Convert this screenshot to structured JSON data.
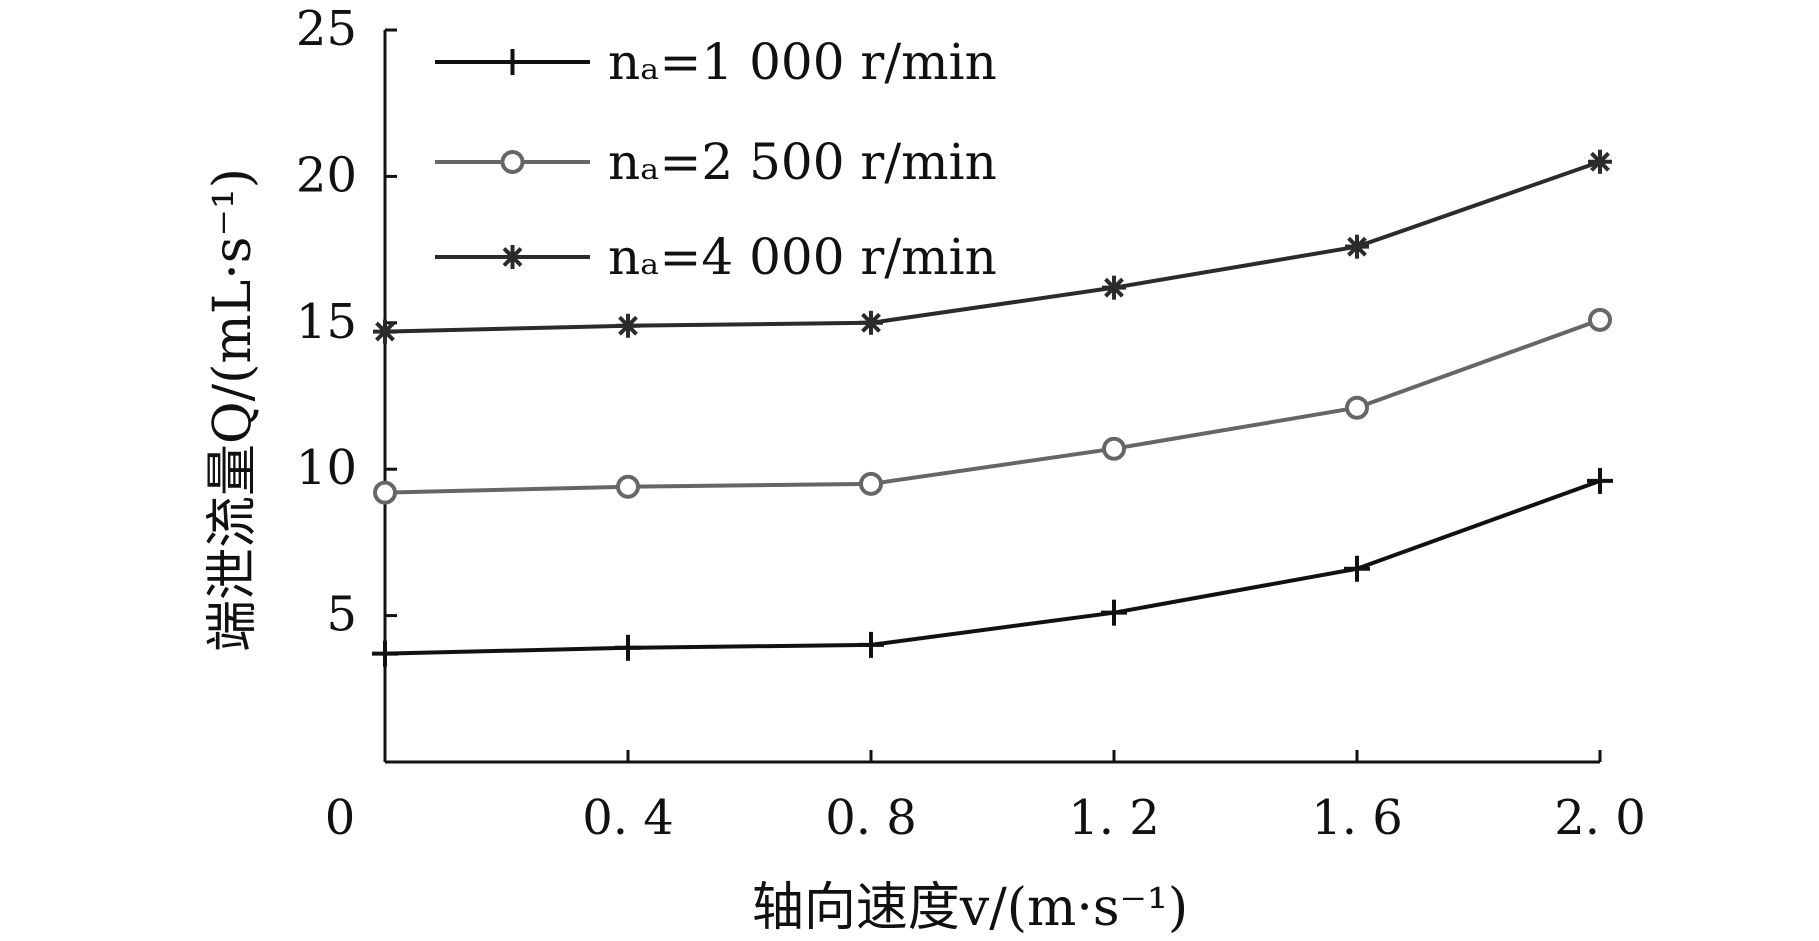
{
  "chart_data": {
    "type": "line",
    "title": "",
    "xlabel": "轴向速度v/(m·s⁻¹)",
    "ylabel": "端泄流量Q/(mL·s⁻¹)",
    "x": [
      0,
      0.4,
      0.8,
      1.2,
      1.6,
      2.0
    ],
    "x_tick_labels": [
      "0",
      "0. 4",
      "0. 8",
      "1. 2",
      "1. 6",
      "2. 0"
    ],
    "y_tick_labels": [
      "5",
      "10",
      "15",
      "20",
      "25"
    ],
    "y_ticks": [
      5,
      10,
      15,
      20,
      25
    ],
    "xlim": [
      0,
      2.0
    ],
    "ylim": [
      0,
      25
    ],
    "grid": false,
    "legend_position": "top-left",
    "series": [
      {
        "name": "nₐ=1 000 r/min",
        "values": [
          3.7,
          3.9,
          4.0,
          5.1,
          6.6,
          9.6
        ],
        "marker": "plus",
        "color": "#111111"
      },
      {
        "name": "nₐ=2 500 r/min",
        "values": [
          9.2,
          9.4,
          9.5,
          10.7,
          12.1,
          15.1
        ],
        "marker": "circle",
        "color": "#666666"
      },
      {
        "name": "nₐ=4 000 r/min",
        "values": [
          14.7,
          14.9,
          15.0,
          16.2,
          17.6,
          20.5
        ],
        "marker": "star",
        "color": "#2b2b2b"
      }
    ]
  }
}
